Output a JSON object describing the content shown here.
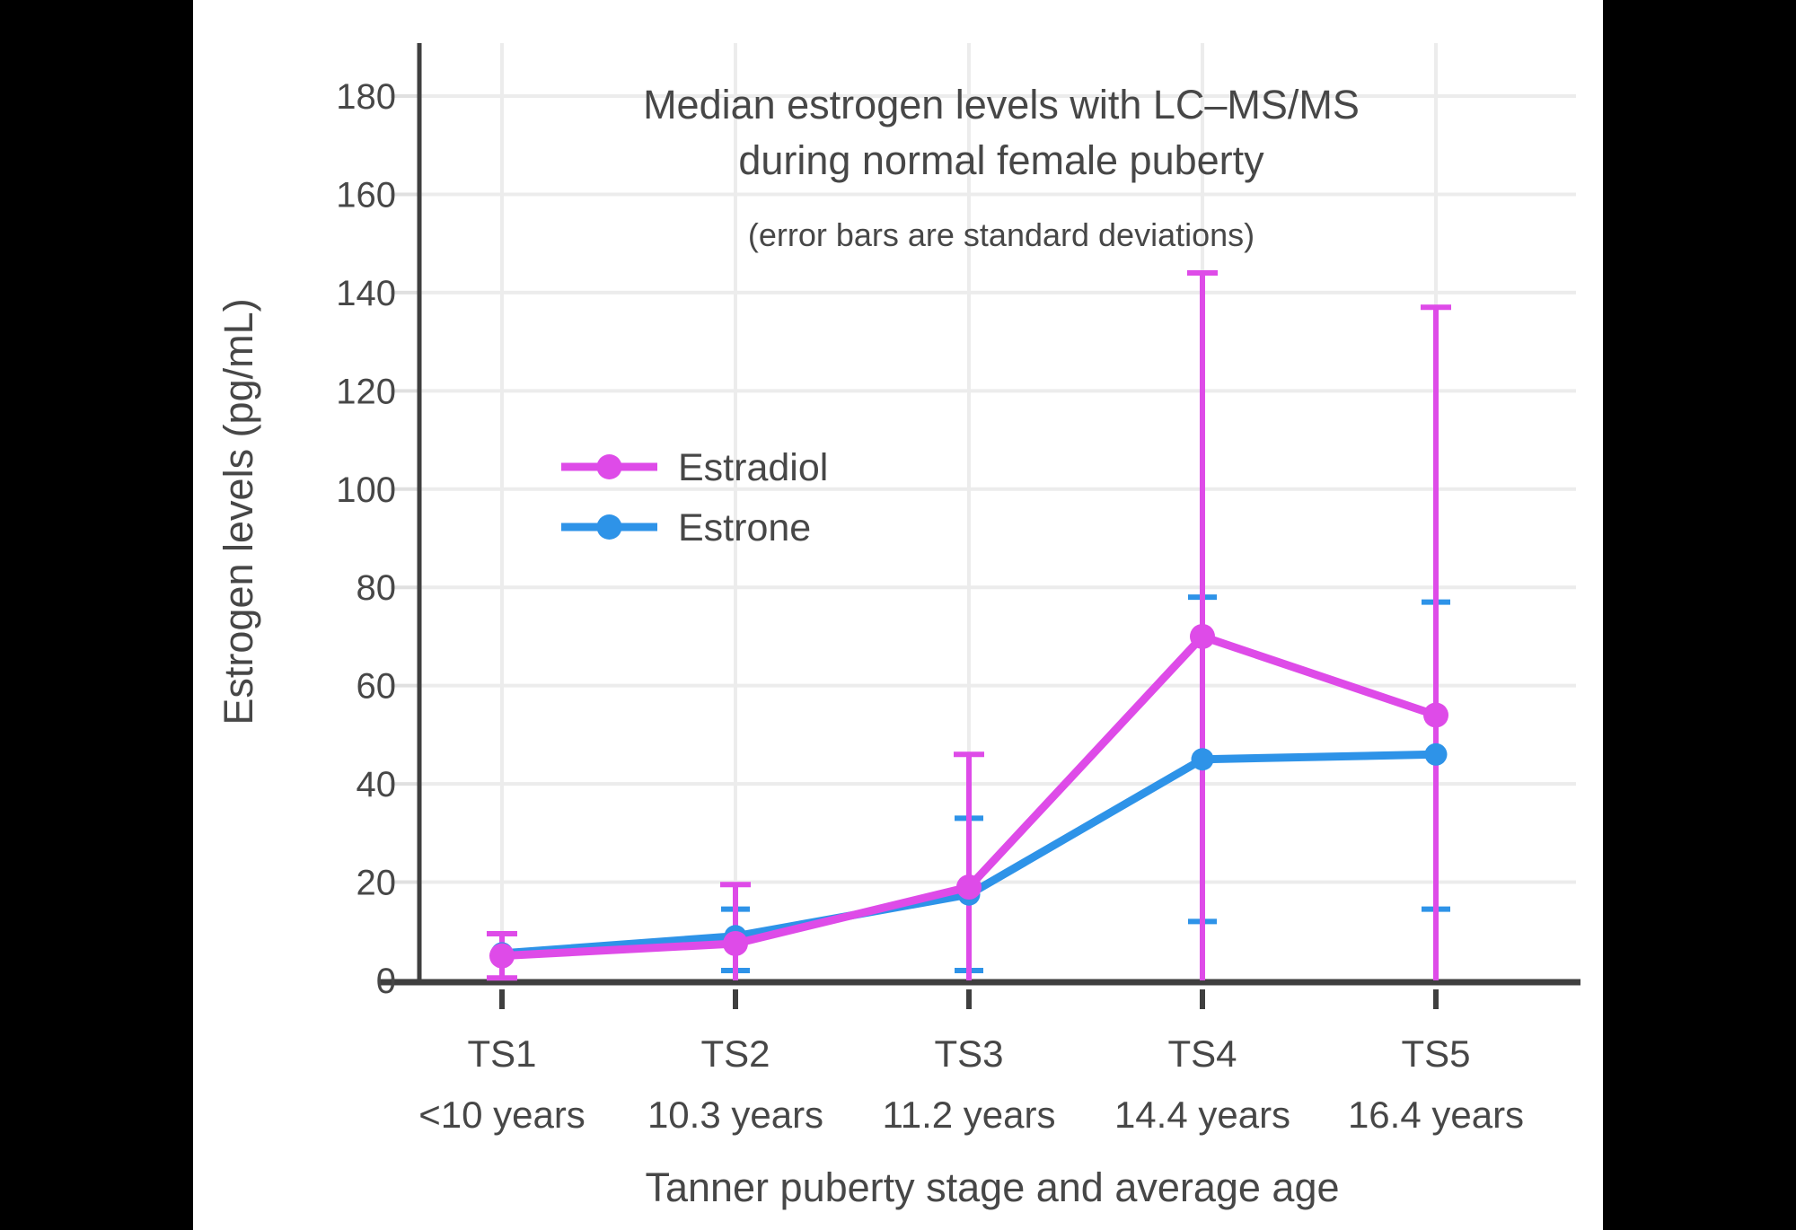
{
  "colors": {
    "background": "#000000",
    "canvas": "#ffffff",
    "grid": "#ececec",
    "axis": "#3f3f3f",
    "text": "#474747",
    "estradiol": "#de4be8",
    "estrone": "#2e93e8"
  },
  "chart_data": {
    "type": "line",
    "title": "Median estrogen levels with LC–MS/MS during normal female puberty",
    "title_lines": [
      "Median estrogen levels with LC–MS/MS",
      "during normal female puberty"
    ],
    "subtitle": "(error bars are standard deviations)",
    "xlabel": "Tanner puberty stage and average age",
    "ylabel": "Estrogen levels (pg/mL)",
    "x_categories": [
      {
        "stage": "TS1",
        "age": "<10 years"
      },
      {
        "stage": "TS2",
        "age": "10.3 years"
      },
      {
        "stage": "TS3",
        "age": "11.2 years"
      },
      {
        "stage": "TS4",
        "age": "14.4 years"
      },
      {
        "stage": "TS5",
        "age": "16.4 years"
      }
    ],
    "y_ticks": [
      0,
      20,
      40,
      60,
      80,
      100,
      120,
      140,
      160,
      180
    ],
    "ylim": [
      0,
      190
    ],
    "grid": true,
    "legend_position": "inside-left-middle",
    "error_bar_meaning": "standard deviations",
    "series": [
      {
        "name": "Estradiol",
        "color": "#de4be8",
        "values": [
          5,
          7.5,
          19,
          70,
          54
        ],
        "err_high": [
          9.5,
          19.5,
          46,
          144,
          137
        ],
        "err_low": [
          0.5,
          0,
          0,
          0,
          0
        ]
      },
      {
        "name": "Estrone",
        "color": "#2e93e8",
        "values": [
          5.5,
          9,
          17.5,
          45,
          46
        ],
        "err_high": [
          null,
          14.5,
          33,
          78,
          77
        ],
        "err_low": [
          null,
          2,
          2,
          12,
          14.5
        ]
      }
    ]
  }
}
